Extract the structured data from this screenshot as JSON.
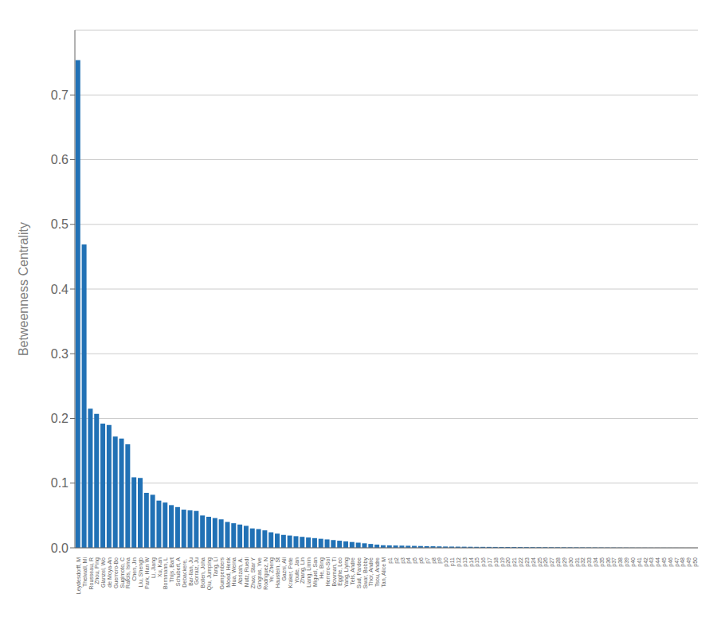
{
  "chart_data": {
    "type": "bar",
    "ylabel": "Betweenness Centrality",
    "categories": [
      "Leydesdorff, M",
      "Thelwall, Mi",
      "Rousseau, R",
      "Zhou, Ping",
      "Glanzel, Wo",
      "de Moya-An",
      "Guerrero-Bo",
      "Sugimoto, C",
      "Rafols, Isma",
      "Chen, Jin",
      "Liu, Shengb",
      "Park, Han W",
      "Li, Jiang",
      "Xu, Kan",
      "Bornmann, L",
      "Thijs, Bart",
      "Schubert, A",
      "Debackere, ",
      "Bar-Ilan, Ju",
      "Gorraiz, Ju",
      "Bollen, Joha",
      "Qiu, Jumping",
      "Tang, Li",
      "Gumpenbers",
      "Moed, Henk",
      "Hua, Weina",
      "Abrizah, A.",
      "Mutz, Ruedi",
      "Zhao, Star Y",
      "Gingras, Yve",
      "Rodriguez, N",
      "Ye, Zheng",
      "Haustein, St",
      "Gazni, Ali",
      "Kraker, Pete",
      "Youte, Jan",
      "Zhang, Lin",
      "Liang, Limin",
      "Miguel, San",
      "He, Bing",
      "Herrero-Sol",
      "Bowman, Ti",
      "Egghe, Leo",
      "Yang, Liying",
      "Tels, Andre",
      "Sud, Pardee",
      "Swar, Bobby",
      "Thor, Andre",
      "Tsou, Andre",
      "Tan, Alice M",
      "p1",
      "p2",
      "p3",
      "p4",
      "p5",
      "p6",
      "p7",
      "p8",
      "p9",
      "p10",
      "p11",
      "p12",
      "p13",
      "p14",
      "p15",
      "p16",
      "p17",
      "p18",
      "p19",
      "p20",
      "p21",
      "p22",
      "p23",
      "p24",
      "p25",
      "p26",
      "p27",
      "p28",
      "p29",
      "p30",
      "p31",
      "p32",
      "p33",
      "p34",
      "p35",
      "p36",
      "p37",
      "p38",
      "p39",
      "p40",
      "p41",
      "p42",
      "p43",
      "p44",
      "p45",
      "p46",
      "p47",
      "p48",
      "p49",
      "p50"
    ],
    "values": [
      0.754,
      0.469,
      0.215,
      0.207,
      0.192,
      0.19,
      0.172,
      0.169,
      0.16,
      0.109,
      0.108,
      0.085,
      0.082,
      0.073,
      0.07,
      0.066,
      0.063,
      0.059,
      0.058,
      0.057,
      0.05,
      0.048,
      0.046,
      0.044,
      0.04,
      0.038,
      0.036,
      0.034,
      0.03,
      0.029,
      0.027,
      0.024,
      0.022,
      0.02,
      0.019,
      0.018,
      0.017,
      0.016,
      0.015,
      0.014,
      0.013,
      0.012,
      0.011,
      0.01,
      0.009,
      0.008,
      0.007,
      0.006,
      0.005,
      0.004,
      0.0038,
      0.0036,
      0.0034,
      0.0032,
      0.003,
      0.0028,
      0.0026,
      0.0024,
      0.0022,
      0.002,
      0.0019,
      0.0018,
      0.0017,
      0.0016,
      0.0015,
      0.00145,
      0.0014,
      0.00135,
      0.0013,
      0.00125,
      0.0012,
      0.00115,
      0.0011,
      0.00105,
      0.001,
      0.00095,
      0.0009,
      0.00085,
      0.0008,
      0.00075,
      0.0007,
      0.00065,
      0.0006,
      0.00055,
      0.0005,
      0.00045,
      0.0004,
      0.00035,
      0.0003,
      0.00025,
      0.0002,
      0.00018,
      0.00016,
      0.00014,
      0.00012,
      0.0001,
      8e-05,
      6e-05,
      4e-05,
      2e-05
    ],
    "color": "#2171b5",
    "ylim": [
      0,
      0.8
    ],
    "yticks": [
      {
        "value": 0,
        "label": "0.0"
      },
      0.1,
      0.2,
      0.3,
      0.4,
      0.5,
      0.6,
      0.7
    ],
    "grid": true
  }
}
